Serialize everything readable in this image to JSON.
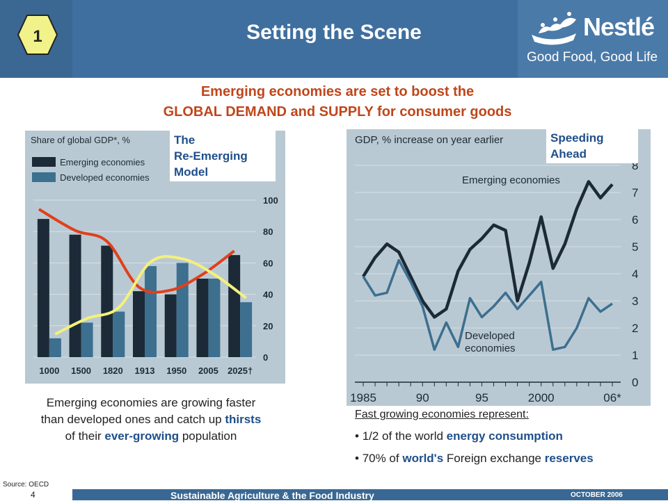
{
  "header": {
    "slide_number": "1",
    "title": "Setting the Scene",
    "brand_name": "Nestlé",
    "brand_tagline": "Good Food, Good Life"
  },
  "headline": {
    "line1": "Emerging economies are set to boost the",
    "line2": "GLOBAL DEMAND and SUPPLY for consumer goods"
  },
  "left_chart": {
    "label_lines": [
      "The",
      "Re-Emerging",
      "Model"
    ],
    "caption": {
      "part1": "Emerging economies are growing faster than developed ones and catch up ",
      "bold1": "thirsts",
      "part2": " of their ",
      "bold2": "ever-growing",
      "part3": " population"
    }
  },
  "right_chart": {
    "label_lines": [
      "Speeding",
      "Ahead"
    ],
    "heading": "Fast growing economies represent:",
    "bullets": [
      {
        "pre": "1/2 of the world ",
        "bold": "energy consumption",
        "post": ""
      },
      {
        "pre": "70% of ",
        "bold": "world's",
        "mid": " Foreign exchange ",
        "bold2": "reserves"
      }
    ]
  },
  "footer": {
    "source": "Source: OECD",
    "page_number": "4",
    "title": "Sustainable Agriculture & the Food Industry",
    "date": "OCTOBER 2006"
  },
  "colors": {
    "header_blue": "#3f6f9e",
    "headline_orange": "#c0461b",
    "emphasis_blue": "#1f4f8a",
    "chart_bg": "#b9c9d3",
    "emerging_series": "#1b2a36",
    "developed_series": "#3d6f8f",
    "trend_red": "#e0401a",
    "trend_yellow": "#f5f07a"
  },
  "chart_data": [
    {
      "type": "bar",
      "title": "Share of global GDP*, %",
      "categories": [
        "1000",
        "1500",
        "1820",
        "1913",
        "1950",
        "2005",
        "2025†"
      ],
      "series": [
        {
          "name": "Emerging economies",
          "values": [
            88,
            78,
            71,
            42,
            40,
            50,
            65
          ]
        },
        {
          "name": "Developed economies",
          "values": [
            12,
            22,
            29,
            58,
            60,
            50,
            35
          ]
        }
      ],
      "ylim": [
        0,
        100
      ],
      "yticks": [
        0,
        20,
        40,
        60,
        80,
        100
      ]
    },
    {
      "type": "line",
      "title": "GDP, % increase on year earlier",
      "x": [
        1985,
        1986,
        1987,
        1988,
        1989,
        1990,
        1991,
        1992,
        1993,
        1994,
        1995,
        1996,
        1997,
        1998,
        1999,
        2000,
        2001,
        2002,
        2003,
        2004,
        2005,
        2006
      ],
      "series": [
        {
          "name": "Emerging economies",
          "values": [
            3.9,
            4.6,
            5.1,
            4.8,
            3.9,
            3.0,
            2.4,
            2.7,
            4.1,
            4.9,
            5.3,
            5.8,
            5.6,
            3.0,
            4.4,
            6.1,
            4.2,
            5.1,
            6.4,
            7.4,
            6.8,
            7.3
          ]
        },
        {
          "name": "Developed economies",
          "values": [
            3.9,
            3.2,
            3.3,
            4.5,
            3.7,
            2.8,
            1.2,
            2.2,
            1.3,
            3.1,
            2.4,
            2.8,
            3.3,
            2.7,
            3.2,
            3.7,
            1.2,
            1.3,
            2.0,
            3.1,
            2.6,
            2.9
          ]
        }
      ],
      "xticks": [
        "1985",
        "90",
        "95",
        "2000",
        "06*"
      ],
      "ylim": [
        0,
        8
      ],
      "yticks": [
        0,
        1,
        2,
        3,
        4,
        5,
        6,
        7,
        8
      ]
    }
  ]
}
